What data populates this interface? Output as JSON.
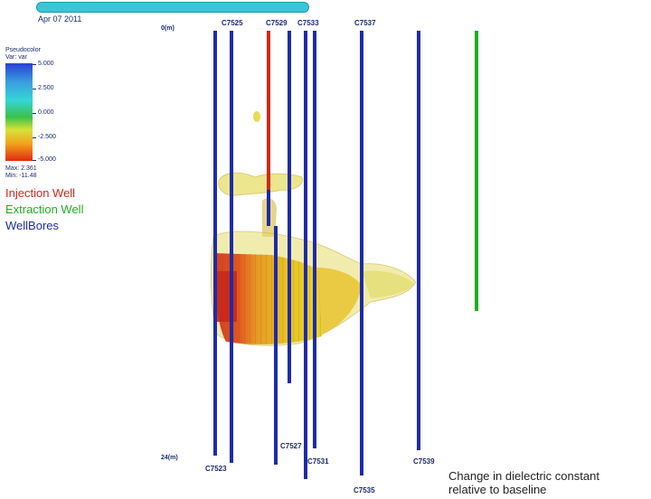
{
  "timeline": {
    "date": "Apr 07 2011"
  },
  "legend": {
    "title_line1": "Pseudocolor",
    "title_line2": "Var: var",
    "ticks": [
      "5.000",
      "2.500",
      "0.000",
      "-2.500",
      "-5.000"
    ],
    "max": "Max: 2.361",
    "min": "Min: -11.48",
    "items": [
      {
        "label": "Injection Well",
        "color": "#d02818"
      },
      {
        "label": "Extraction Well",
        "color": "#1fae1f"
      },
      {
        "label": "WellBores",
        "color": "#1f2ba8"
      }
    ]
  },
  "axis": {
    "top": "0(m)",
    "bottom": "24(m)"
  },
  "wells": {
    "top_labels": [
      "C7525",
      "C7529",
      "C7533",
      "C7537"
    ],
    "bottom_labels": [
      "C7523",
      "C7527",
      "C7531",
      "C7535",
      "C7539"
    ]
  },
  "caption": {
    "line1": "Change in dielectric constant",
    "line2": "relative to baseline"
  }
}
